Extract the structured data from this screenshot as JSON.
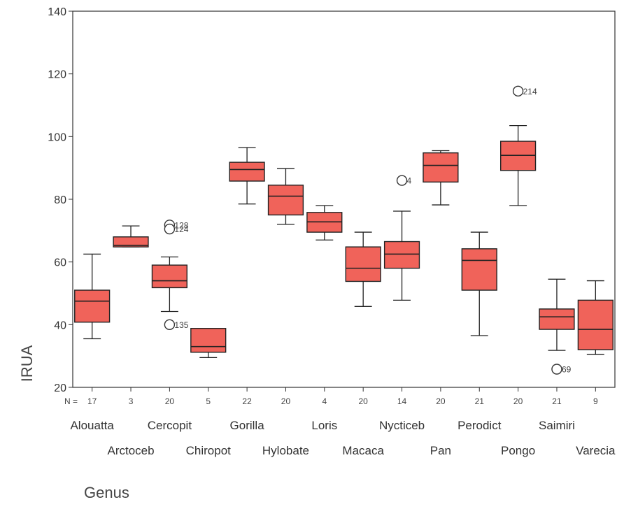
{
  "chart_data": {
    "type": "boxplot",
    "xlabel": "Genus",
    "ylabel": "IRUA",
    "ylim": [
      20,
      140
    ],
    "yticks": [
      20,
      40,
      60,
      80,
      100,
      120,
      140
    ],
    "n_label": "N =",
    "box_color": "#f0635a",
    "categories": [
      "Alouatta",
      "Arctoceb",
      "Cercopit",
      "Chiropot",
      "Gorilla",
      "Hylobate",
      "Loris",
      "Macaca",
      "Nycticeb",
      "Pan",
      "Perodict",
      "Pongo",
      "Saimiri",
      "Varecia"
    ],
    "n": [
      "17",
      "3",
      "20",
      "5",
      "22",
      "20",
      "4",
      "20",
      "14",
      "20",
      "21",
      "20",
      "21",
      "9"
    ],
    "boxes": [
      {
        "whisker_low": 35.5,
        "q1": 40.8,
        "median": 47.5,
        "q3": 51.0,
        "whisker_high": 62.5
      },
      {
        "whisker_low": 64.8,
        "q1": 64.8,
        "median": 65.3,
        "q3": 68.0,
        "whisker_high": 71.5
      },
      {
        "whisker_low": 44.2,
        "q1": 51.8,
        "median": 54.0,
        "q3": 59.0,
        "whisker_high": 61.6
      },
      {
        "whisker_low": 29.5,
        "q1": 31.2,
        "median": 33.0,
        "q3": 38.8,
        "whisker_high": 38.8
      },
      {
        "whisker_low": 78.5,
        "q1": 85.8,
        "median": 89.5,
        "q3": 91.8,
        "whisker_high": 96.5
      },
      {
        "whisker_low": 72.0,
        "q1": 75.0,
        "median": 81.0,
        "q3": 84.5,
        "whisker_high": 89.8
      },
      {
        "whisker_low": 67.0,
        "q1": 69.5,
        "median": 72.8,
        "q3": 75.8,
        "whisker_high": 78.0
      },
      {
        "whisker_low": 45.8,
        "q1": 53.8,
        "median": 58.0,
        "q3": 64.8,
        "whisker_high": 69.5
      },
      {
        "whisker_low": 47.8,
        "q1": 58.0,
        "median": 62.5,
        "q3": 66.5,
        "whisker_high": 76.2
      },
      {
        "whisker_low": 78.2,
        "q1": 85.5,
        "median": 90.8,
        "q3": 94.8,
        "whisker_high": 95.5
      },
      {
        "whisker_low": 36.5,
        "q1": 51.0,
        "median": 60.5,
        "q3": 64.2,
        "whisker_high": 69.5
      },
      {
        "whisker_low": 78.0,
        "q1": 89.2,
        "median": 94.0,
        "q3": 98.5,
        "whisker_high": 103.5
      },
      {
        "whisker_low": 31.8,
        "q1": 38.5,
        "median": 42.5,
        "q3": 45.0,
        "whisker_high": 54.5
      },
      {
        "whisker_low": 30.5,
        "q1": 32.0,
        "median": 38.5,
        "q3": 47.8,
        "whisker_high": 54.0
      }
    ],
    "outliers": [
      {
        "category": 2,
        "value": 71.8,
        "label": "128"
      },
      {
        "category": 2,
        "value": 70.5,
        "label": "124"
      },
      {
        "category": 2,
        "value": 40.0,
        "label": "135"
      },
      {
        "category": 8,
        "value": 86.0,
        "label": "4"
      },
      {
        "category": 11,
        "value": 114.5,
        "label": "214"
      },
      {
        "category": 12,
        "value": 25.8,
        "label": "69"
      }
    ]
  }
}
